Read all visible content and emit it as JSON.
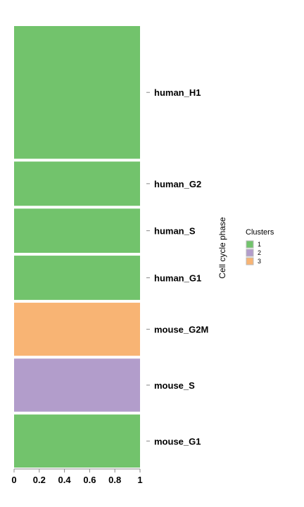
{
  "chart_data": {
    "type": "bar",
    "orientation": "horizontal",
    "stacked": true,
    "categories": [
      "human_H1",
      "human_G2",
      "human_S",
      "human_G1",
      "mouse_G2M",
      "mouse_S",
      "mouse_G1"
    ],
    "category_weights": [
      3,
      1,
      1,
      1,
      1.2,
      1.2,
      1.2
    ],
    "values": [
      1,
      1,
      1,
      1,
      1,
      1,
      1
    ],
    "clusters": [
      "1",
      "1",
      "1",
      "1",
      "3",
      "2",
      "1"
    ],
    "xlim": [
      0,
      1
    ],
    "xticks": [
      "0",
      "0.2",
      "0.4",
      "0.6",
      "0.8",
      "1"
    ],
    "ylabel": "Cell cycle phase",
    "legend": {
      "title": "Clusters",
      "placement": "right",
      "items": [
        {
          "label": "1",
          "color": "#72c36c"
        },
        {
          "label": "2",
          "color": "#b29dcb"
        },
        {
          "label": "3",
          "color": "#f8b474"
        }
      ]
    },
    "grid": false
  }
}
